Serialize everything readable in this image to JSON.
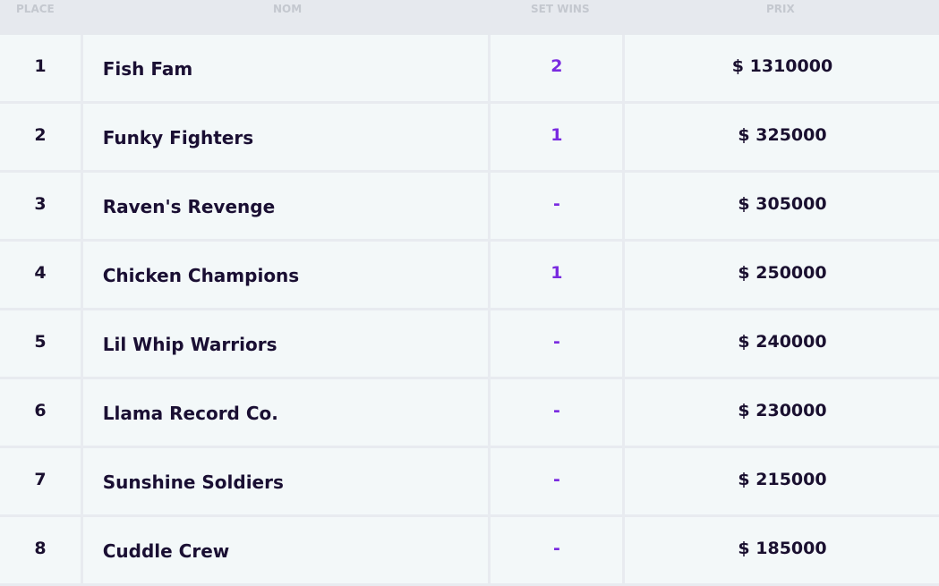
{
  "header": {
    "place": "PLACE",
    "name": "NOM",
    "sets": "SET WINS",
    "prize": "PRIX"
  },
  "rows": [
    {
      "place": "1",
      "name": "Fish Fam",
      "sets": "2",
      "prize": "$ 1310000"
    },
    {
      "place": "2",
      "name": "Funky Fighters",
      "sets": "1",
      "prize": "$ 325000"
    },
    {
      "place": "3",
      "name": "Raven's Revenge",
      "sets": "-",
      "prize": "$ 305000"
    },
    {
      "place": "4",
      "name": "Chicken Champions",
      "sets": "1",
      "prize": "$ 250000"
    },
    {
      "place": "5",
      "name": "Lil Whip Warriors",
      "sets": "-",
      "prize": "$ 240000"
    },
    {
      "place": "6",
      "name": "Llama Record Co.",
      "sets": "-",
      "prize": "$ 230000"
    },
    {
      "place": "7",
      "name": "Sunshine Soldiers",
      "sets": "-",
      "prize": "$ 215000"
    },
    {
      "place": "8",
      "name": "Cuddle Crew",
      "sets": "-",
      "prize": "$ 185000"
    }
  ],
  "colors": {
    "background": "#e8ebf0",
    "cell": "#f3f8f9",
    "text": "#1a1030",
    "accent": "#7a2be0",
    "header_text": "#c4c8cf"
  }
}
